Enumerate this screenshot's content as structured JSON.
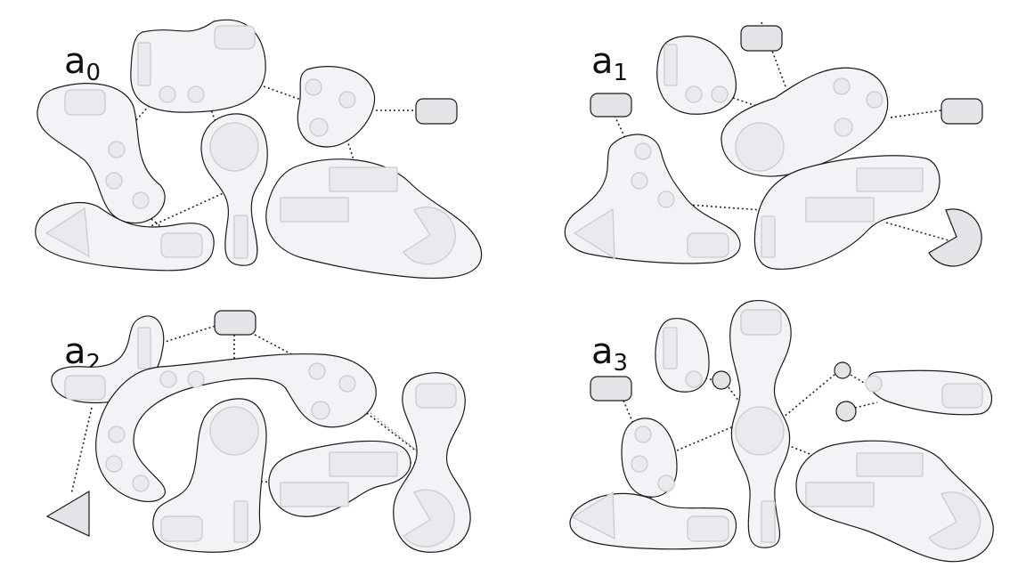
{
  "panels": [
    {
      "id": "a0",
      "base": "a",
      "subscript": "0"
    },
    {
      "id": "a1",
      "base": "a",
      "subscript": "1"
    },
    {
      "id": "a2",
      "base": "a",
      "subscript": "2"
    },
    {
      "id": "a3",
      "base": "a",
      "subscript": "3"
    }
  ]
}
